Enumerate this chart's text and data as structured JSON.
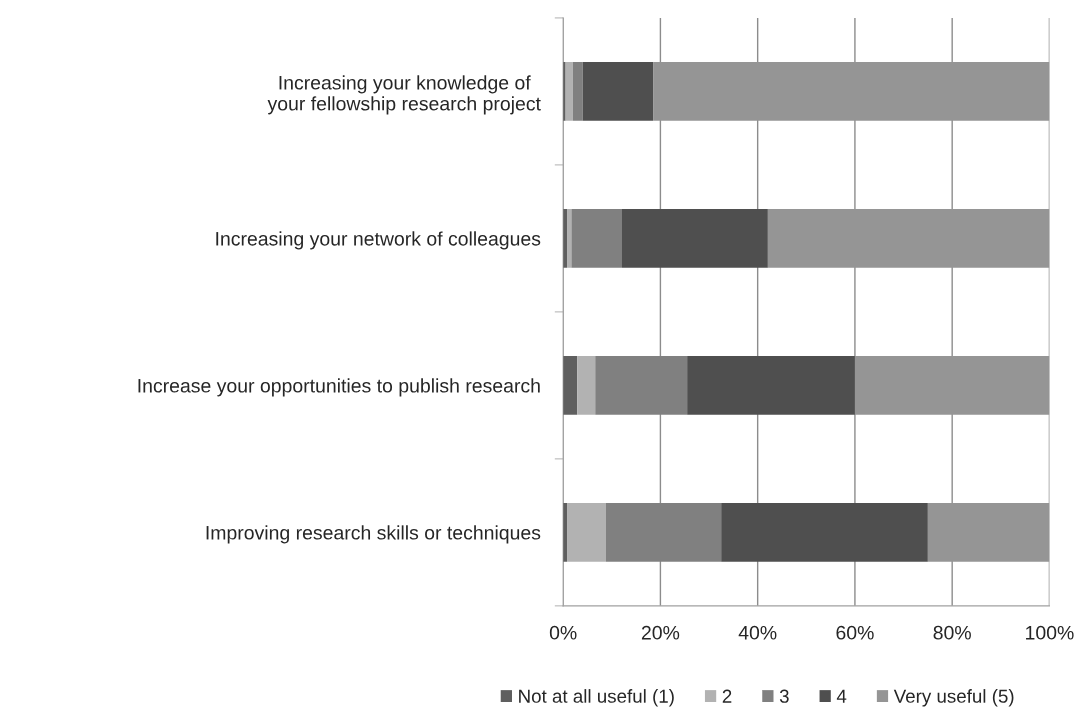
{
  "chart_data": {
    "type": "bar",
    "orientation": "horizontal",
    "stacked": true,
    "categories": [
      "Increasing your knowledge of your fellowship research project",
      "Increasing your network of colleagues",
      "Increase your opportunities to publish research",
      "Improving research skills or techniques"
    ],
    "series": [
      {
        "name": "Not at all useful (1)",
        "color": "#5f5f5f",
        "values": [
          0.5,
          0.8,
          2.9,
          0.8
        ]
      },
      {
        "name": "2",
        "color": "#b2b2b2",
        "values": [
          1.5,
          0.9,
          3.7,
          8.0
        ]
      },
      {
        "name": "3",
        "color": "#808080",
        "values": [
          2.0,
          10.4,
          18.9,
          23.7
        ]
      },
      {
        "name": "4",
        "color": "#4f4f4f",
        "values": [
          14.5,
          30.0,
          34.5,
          42.5
        ]
      },
      {
        "name": "Very useful (5)",
        "color": "#959595",
        "values": [
          81.5,
          57.9,
          40.0,
          25.0
        ]
      }
    ],
    "xlim": [
      0,
      100
    ],
    "xticks": [
      {
        "value": 0,
        "label": "0%"
      },
      {
        "value": 20,
        "label": "20%"
      },
      {
        "value": 40,
        "label": "40%"
      },
      {
        "value": 60,
        "label": "60%"
      },
      {
        "value": 80,
        "label": "80%"
      },
      {
        "value": 100,
        "label": "100%"
      }
    ],
    "grid": "x",
    "legend": "bottom"
  }
}
